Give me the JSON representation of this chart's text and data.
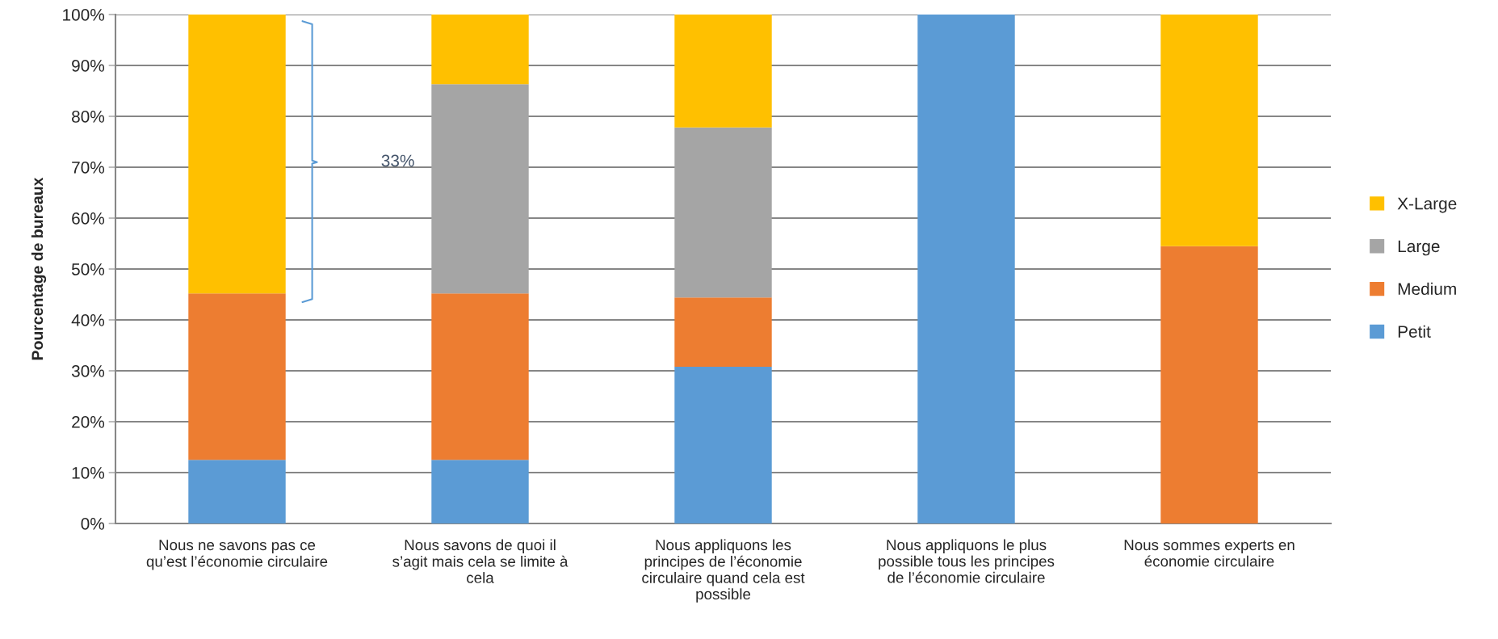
{
  "chart_data": {
    "type": "bar",
    "stacked": true,
    "ylabel": "Pourcentage de bureaux",
    "categories": [
      "Nous ne savons pas ce\nqu’est l’économie circulaire",
      "Nous savons de quoi il\ns’agit mais cela se limite à\ncela",
      "Nous appliquons les\nprincipes de l’économie\ncirculaire quand cela est\npossible",
      "Nous appliquons le plus\npossible tous les principes\nde l’économie circulaire",
      "Nous sommes experts en\néconomie circulaire"
    ],
    "series": [
      {
        "name": "Petit",
        "color": "#5b9bd5",
        "values": [
          12.5,
          12.5,
          30.8,
          100,
          0
        ]
      },
      {
        "name": "Medium",
        "color": "#ed7d31",
        "values": [
          32.7,
          32.7,
          13.6,
          0,
          54.5
        ]
      },
      {
        "name": "Large",
        "color": "#a5a5a5",
        "values": [
          0,
          41.1,
          33.4,
          0,
          0
        ]
      },
      {
        "name": "X-Large",
        "color": "#ffc000",
        "values": [
          54.8,
          13.7,
          22.2,
          0,
          45.5
        ]
      }
    ],
    "ylim": [
      0,
      100
    ],
    "yticks": [
      {
        "value": 0,
        "label": "0%"
      },
      {
        "value": 10,
        "label": "10%"
      },
      {
        "value": 20,
        "label": "20%"
      },
      {
        "value": 30,
        "label": "30%"
      },
      {
        "value": 40,
        "label": "40%"
      },
      {
        "value": 50,
        "label": "50%"
      },
      {
        "value": 60,
        "label": "60%"
      },
      {
        "value": 70,
        "label": "70%"
      },
      {
        "value": 80,
        "label": "80%"
      },
      {
        "value": 90,
        "label": "90%"
      },
      {
        "value": 100,
        "label": "100%"
      }
    ],
    "grid": "y",
    "legend": "right",
    "annotations": [
      "33%"
    ]
  }
}
